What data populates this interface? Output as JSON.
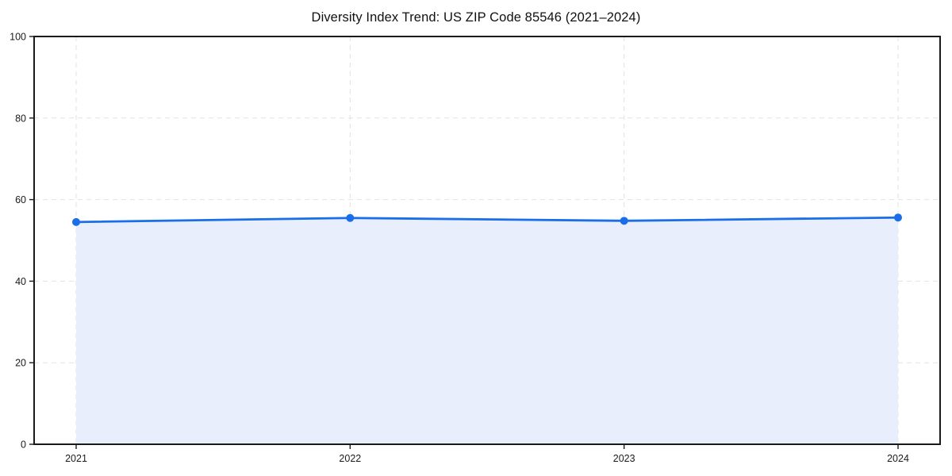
{
  "chart_data": {
    "type": "area",
    "title": "Diversity Index Trend: US ZIP Code 85546 (2021–2024)",
    "x": [
      2021,
      2022,
      2023,
      2024
    ],
    "series": [
      {
        "name": "Diversity Index",
        "values": [
          54.5,
          55.5,
          54.8,
          55.6
        ]
      }
    ],
    "xlabel": "",
    "ylabel": "",
    "ylim": [
      0,
      100
    ],
    "yticks": [
      0,
      20,
      40,
      60,
      80,
      100
    ],
    "grid": "dashed-both-axes",
    "legend_position": "none",
    "marker": "circle",
    "colors": {
      "line": "#1a6fe8",
      "marker": "#1a6fe8",
      "fill": "#e8eefb",
      "grid": "#e2e2e2",
      "spine": "#1a1a1a",
      "tick_text": "#1a1a1a",
      "background": "#ffffff"
    }
  }
}
